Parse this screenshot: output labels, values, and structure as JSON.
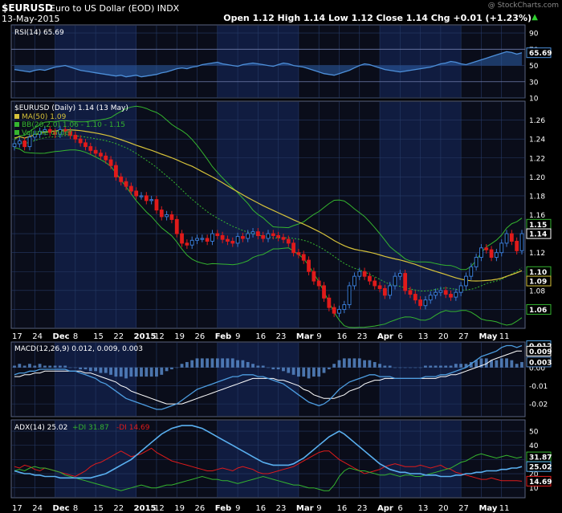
{
  "header": {
    "symbol": "$EURUSD",
    "description": "Euro to US Dollar (EOD)",
    "exchange": "INDX",
    "date": "13-May-2015",
    "watermark": "@ StockCharts.com",
    "ohlc": "Open 1.12  High 1.14  Low 1.12  Close 1.14  Chg +0.01 (+1.23%)",
    "chg_arrow": "▲"
  },
  "colors": {
    "background": "#000000",
    "panel_background": "#0a0d1a",
    "band_shade": "#101c40",
    "grid": "#263a66",
    "up_candle": "#3a7bd5",
    "down_candle": "#e01b1b",
    "rsi_line": "#4d8fd9",
    "ma50": "#d6c23a",
    "bollinger": "#35b52f",
    "macd_line": "#4d9de0",
    "macd_signal": "#ffffff",
    "macd_histogram": "#5b8fd0",
    "adx": "#5ab0f0",
    "plus_di": "#35b52f",
    "minus_di": "#e01b1b"
  },
  "x_axis_labels": [
    "17",
    "24",
    "Dec",
    "8",
    "15",
    "22",
    "2015",
    "12",
    "19",
    "26",
    "Feb",
    "9",
    "16",
    "23",
    "Mar",
    "9",
    "16",
    "23",
    "Apr",
    "6",
    "13",
    "20",
    "27",
    "May",
    "11"
  ],
  "chart_data": [
    {
      "type": "line",
      "panel": "RSI",
      "label": "RSI(14) 65.69",
      "ylim": [
        10,
        100
      ],
      "yticks": [
        10,
        30,
        50,
        70,
        90
      ],
      "current_value": 65.69,
      "series": [
        {
          "name": "RSI(14)",
          "values": [
            45,
            44,
            43,
            42,
            44,
            45,
            44,
            46,
            48,
            49,
            50,
            48,
            46,
            44,
            43,
            42,
            41,
            40,
            39,
            38,
            37,
            38,
            36,
            37,
            38,
            36,
            37,
            38,
            39,
            41,
            42,
            44,
            46,
            47,
            46,
            48,
            49,
            51,
            52,
            53,
            54,
            52,
            51,
            50,
            49,
            51,
            52,
            53,
            52,
            51,
            50,
            49,
            51,
            53,
            52,
            50,
            49,
            48,
            46,
            44,
            42,
            40,
            39,
            38,
            40,
            42,
            44,
            47,
            50,
            52,
            51,
            49,
            47,
            45,
            44,
            43,
            42,
            43,
            44,
            45,
            46,
            47,
            48,
            50,
            52,
            53,
            55,
            54,
            52,
            51,
            53,
            55,
            57,
            59,
            61,
            63,
            65,
            67,
            66,
            64,
            65.69
          ]
        }
      ]
    },
    {
      "type": "candlestick",
      "panel": "Price",
      "title": "$EURUSD (Daily) 1.14 (13 May)",
      "legend": [
        "MA(50) 1.09",
        "BB(20,2.0) 1.06 - 1.10 - 1.15",
        "Volume undef"
      ],
      "ylim": [
        1.04,
        1.28
      ],
      "yticks": [
        1.06,
        1.08,
        1.1,
        1.12,
        1.14,
        1.16,
        1.18,
        1.2,
        1.22,
        1.24,
        1.26
      ],
      "price_tags": [
        {
          "value": 1.15,
          "label": "1.15",
          "color": "#35b52f"
        },
        {
          "value": 1.14,
          "label": "1.14",
          "color": "#ffffff"
        },
        {
          "value": 1.1,
          "label": "1.10",
          "color": "#35b52f"
        },
        {
          "value": 1.09,
          "label": "1.09",
          "color": "#d6c23a"
        },
        {
          "value": 1.06,
          "label": "1.06",
          "color": "#35b52f"
        }
      ],
      "close": [
        1.235,
        1.238,
        1.232,
        1.242,
        1.245,
        1.248,
        1.25,
        1.247,
        1.245,
        1.25,
        1.248,
        1.244,
        1.24,
        1.236,
        1.232,
        1.228,
        1.225,
        1.222,
        1.218,
        1.212,
        1.2,
        1.195,
        1.19,
        1.185,
        1.18,
        1.18,
        1.175,
        1.176,
        1.165,
        1.158,
        1.16,
        1.155,
        1.14,
        1.13,
        1.128,
        1.133,
        1.135,
        1.135,
        1.132,
        1.14,
        1.138,
        1.134,
        1.132,
        1.13,
        1.137,
        1.135,
        1.14,
        1.142,
        1.138,
        1.135,
        1.14,
        1.138,
        1.136,
        1.134,
        1.13,
        1.12,
        1.118,
        1.112,
        1.1,
        1.09,
        1.085,
        1.072,
        1.062,
        1.056,
        1.06,
        1.065,
        1.085,
        1.095,
        1.1,
        1.095,
        1.09,
        1.085,
        1.082,
        1.075,
        1.085,
        1.095,
        1.098,
        1.08,
        1.076,
        1.07,
        1.064,
        1.07,
        1.075,
        1.078,
        1.08,
        1.076,
        1.073,
        1.078,
        1.085,
        1.095,
        1.105,
        1.115,
        1.125,
        1.123,
        1.115,
        1.12,
        1.13,
        1.14,
        1.132,
        1.122,
        1.14
      ]
    },
    {
      "type": "line",
      "panel": "MACD",
      "label": "MACD(12,26,9) 0.012, 0.009, 0.003",
      "ylim": [
        -0.027,
        0.014
      ],
      "yticks": [
        -0.02,
        -0.01,
        0.0
      ],
      "price_tags": [
        {
          "value": 0.012,
          "label": "0.012",
          "color": "#4d9de0"
        },
        {
          "value": 0.009,
          "label": "0.009",
          "color": "#ffffff"
        },
        {
          "value": 0.003,
          "label": "0.003",
          "color": "#5b8fd0"
        }
      ],
      "series": [
        {
          "name": "MACD",
          "values": [
            -0.004,
            -0.003,
            -0.003,
            -0.002,
            -0.002,
            -0.001,
            -0.001,
            -0.001,
            -0.001,
            -0.001,
            -0.001,
            -0.002,
            -0.002,
            -0.003,
            -0.004,
            -0.005,
            -0.006,
            -0.008,
            -0.009,
            -0.011,
            -0.013,
            -0.015,
            -0.017,
            -0.018,
            -0.019,
            -0.02,
            -0.021,
            -0.022,
            -0.023,
            -0.023,
            -0.022,
            -0.021,
            -0.02,
            -0.018,
            -0.016,
            -0.014,
            -0.012,
            -0.011,
            -0.01,
            -0.009,
            -0.008,
            -0.007,
            -0.006,
            -0.005,
            -0.005,
            -0.004,
            -0.004,
            -0.004,
            -0.005,
            -0.005,
            -0.006,
            -0.007,
            -0.008,
            -0.009,
            -0.011,
            -0.013,
            -0.015,
            -0.017,
            -0.019,
            -0.02,
            -0.021,
            -0.02,
            -0.018,
            -0.015,
            -0.012,
            -0.01,
            -0.008,
            -0.007,
            -0.006,
            -0.005,
            -0.004,
            -0.004,
            -0.005,
            -0.005,
            -0.005,
            -0.006,
            -0.006,
            -0.006,
            -0.006,
            -0.006,
            -0.006,
            -0.005,
            -0.005,
            -0.005,
            -0.004,
            -0.004,
            -0.003,
            -0.002,
            -0.001,
            0.0,
            0.002,
            0.004,
            0.006,
            0.007,
            0.008,
            0.009,
            0.011,
            0.012,
            0.012,
            0.011,
            0.012
          ]
        },
        {
          "name": "Signal",
          "values": [
            -0.005,
            -0.005,
            -0.004,
            -0.004,
            -0.003,
            -0.003,
            -0.002,
            -0.002,
            -0.002,
            -0.002,
            -0.002,
            -0.002,
            -0.002,
            -0.002,
            -0.003,
            -0.003,
            -0.004,
            -0.005,
            -0.006,
            -0.007,
            -0.008,
            -0.01,
            -0.011,
            -0.013,
            -0.014,
            -0.015,
            -0.016,
            -0.017,
            -0.018,
            -0.019,
            -0.02,
            -0.02,
            -0.02,
            -0.02,
            -0.019,
            -0.018,
            -0.017,
            -0.016,
            -0.015,
            -0.014,
            -0.013,
            -0.012,
            -0.011,
            -0.01,
            -0.009,
            -0.008,
            -0.007,
            -0.006,
            -0.006,
            -0.006,
            -0.006,
            -0.006,
            -0.007,
            -0.007,
            -0.008,
            -0.009,
            -0.01,
            -0.012,
            -0.013,
            -0.015,
            -0.016,
            -0.017,
            -0.017,
            -0.017,
            -0.016,
            -0.015,
            -0.013,
            -0.012,
            -0.011,
            -0.009,
            -0.008,
            -0.007,
            -0.007,
            -0.006,
            -0.006,
            -0.006,
            -0.006,
            -0.006,
            -0.006,
            -0.006,
            -0.006,
            -0.006,
            -0.006,
            -0.006,
            -0.005,
            -0.005,
            -0.004,
            -0.004,
            -0.003,
            -0.002,
            -0.001,
            0.0,
            0.001,
            0.002,
            0.004,
            0.005,
            0.006,
            0.007,
            0.008,
            0.009,
            0.009
          ]
        },
        {
          "name": "Histogram",
          "values": [
            0.001,
            0.002,
            0.001,
            0.002,
            0.001,
            0.002,
            0.001,
            0.001,
            0.001,
            0.001,
            0.001,
            0.0,
            0.0,
            -0.001,
            -0.001,
            -0.002,
            -0.002,
            -0.003,
            -0.003,
            -0.004,
            -0.005,
            -0.005,
            -0.006,
            -0.005,
            -0.005,
            -0.005,
            -0.005,
            -0.005,
            -0.005,
            -0.004,
            -0.002,
            -0.001,
            0.0,
            0.002,
            0.003,
            0.004,
            0.005,
            0.005,
            0.005,
            0.005,
            0.005,
            0.005,
            0.005,
            0.005,
            0.004,
            0.004,
            0.003,
            0.002,
            0.001,
            0.001,
            0.0,
            -0.001,
            -0.001,
            -0.002,
            -0.003,
            -0.004,
            -0.005,
            -0.005,
            -0.006,
            -0.005,
            -0.005,
            -0.003,
            -0.001,
            0.002,
            0.004,
            0.005,
            0.005,
            0.005,
            0.005,
            0.004,
            0.004,
            0.003,
            0.002,
            0.001,
            0.001,
            0.0,
            0.0,
            0.0,
            0.0,
            0.0,
            0.0,
            0.001,
            0.001,
            0.001,
            0.001,
            0.001,
            0.001,
            0.002,
            0.002,
            0.002,
            0.003,
            0.004,
            0.005,
            0.005,
            0.004,
            0.004,
            0.005,
            0.005,
            0.004,
            0.002,
            0.003
          ]
        }
      ]
    },
    {
      "type": "line",
      "panel": "ADX",
      "label": "ADX(14) 25.02 +DI 31.87 -DI 14.69",
      "ylim": [
        3,
        58
      ],
      "yticks": [
        10,
        20,
        30,
        40,
        50
      ],
      "price_tags": [
        {
          "value": 31.87,
          "label": "31.87",
          "color": "#35b52f"
        },
        {
          "value": 25.02,
          "label": "25.02",
          "color": "#5ab0f0"
        },
        {
          "value": 14.69,
          "label": "14.69",
          "color": "#e01b1b"
        }
      ],
      "series": [
        {
          "name": "ADX",
          "values": [
            22,
            21,
            20,
            20,
            19,
            19,
            18,
            18,
            18,
            17,
            17,
            17,
            17,
            17,
            17,
            17,
            18,
            19,
            20,
            22,
            24,
            26,
            28,
            30,
            33,
            36,
            39,
            42,
            45,
            48,
            50,
            52,
            53,
            54,
            54,
            54,
            53,
            52,
            50,
            48,
            46,
            44,
            42,
            40,
            38,
            36,
            34,
            32,
            30,
            28,
            27,
            26,
            26,
            26,
            26,
            27,
            29,
            31,
            34,
            37,
            40,
            43,
            46,
            48,
            50,
            48,
            45,
            42,
            39,
            36,
            33,
            30,
            27,
            25,
            23,
            22,
            21,
            21,
            20,
            20,
            20,
            19,
            19,
            19,
            18,
            18,
            18,
            19,
            19,
            20,
            20,
            21,
            21,
            22,
            22,
            22,
            23,
            23,
            24,
            24,
            25.02
          ]
        },
        {
          "name": "+DI",
          "values": [
            22,
            23,
            22,
            24,
            25,
            24,
            24,
            23,
            22,
            21,
            19,
            18,
            17,
            16,
            15,
            14,
            13,
            12,
            11,
            10,
            9,
            8,
            9,
            10,
            11,
            12,
            11,
            10,
            10,
            11,
            12,
            12,
            13,
            14,
            15,
            16,
            17,
            18,
            17,
            16,
            16,
            15,
            15,
            14,
            13,
            14,
            15,
            16,
            17,
            18,
            17,
            16,
            15,
            14,
            13,
            12,
            12,
            11,
            10,
            10,
            9,
            8,
            8,
            12,
            18,
            22,
            24,
            23,
            22,
            22,
            21,
            20,
            19,
            19,
            20,
            19,
            18,
            19,
            19,
            18,
            18,
            19,
            20,
            21,
            22,
            23,
            24,
            26,
            28,
            29,
            31,
            33,
            34,
            33,
            32,
            31,
            32,
            33,
            32,
            31,
            31.87
          ]
        },
        {
          "name": "-DI",
          "values": [
            25,
            24,
            26,
            25,
            23,
            22,
            24,
            23,
            22,
            21,
            20,
            19,
            18,
            20,
            22,
            25,
            27,
            28,
            30,
            32,
            34,
            36,
            34,
            32,
            33,
            34,
            36,
            38,
            35,
            33,
            31,
            29,
            28,
            27,
            26,
            25,
            24,
            23,
            22,
            22,
            23,
            24,
            23,
            22,
            24,
            25,
            24,
            23,
            21,
            20,
            20,
            21,
            22,
            23,
            24,
            25,
            27,
            29,
            31,
            33,
            35,
            36,
            36,
            33,
            30,
            28,
            26,
            24,
            22,
            20,
            21,
            22,
            23,
            25,
            26,
            27,
            26,
            25,
            25,
            25,
            26,
            25,
            24,
            25,
            26,
            24,
            23,
            21,
            20,
            19,
            18,
            17,
            16,
            16,
            17,
            16,
            15,
            15,
            15,
            15,
            14.69
          ]
        }
      ]
    }
  ]
}
